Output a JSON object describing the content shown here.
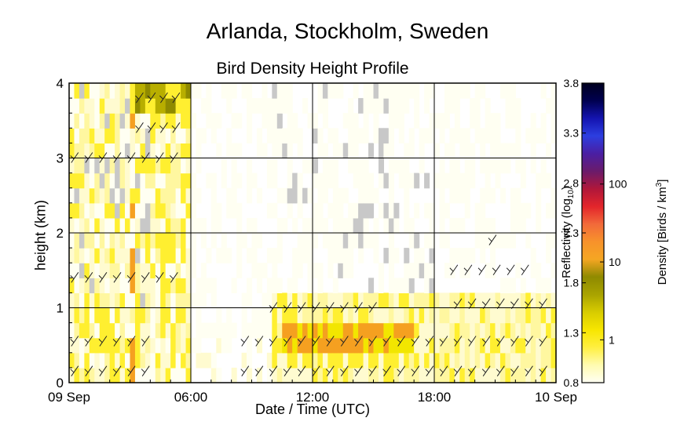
{
  "figure": {
    "title": "Arlanda, Stockholm, Sweden",
    "subtitle": "Bird Density Height Profile"
  },
  "colorbar": {
    "left_label": "Reflectivity (log",
    "left_label_sub": "10",
    "left_label_end": ")",
    "right_label": "Density [Birds / km",
    "right_label_sup": "3",
    "right_label_end": "]",
    "left_ticks": [
      "0.8",
      "1.3",
      "1.8",
      "2.3",
      "2.8",
      "3.3",
      "3.8"
    ],
    "right_ticks": [
      "1",
      "10",
      "100"
    ],
    "colors": [
      "#fffff4",
      "#fffbb0",
      "#ffef40",
      "#f7e600",
      "#d8cc00",
      "#a9a300",
      "#8f8a00",
      "#f5a623",
      "#f7922b",
      "#f26a3a",
      "#e3252b",
      "#b0173a",
      "#6a1b6b",
      "#4a1fa3",
      "#2c3ee0",
      "#1414b0",
      "#000050",
      "#00001f"
    ]
  },
  "chart_data": {
    "type": "heatmap",
    "title": "Bird Density Height Profile",
    "xlabel": "Date / Time (UTC)",
    "ylabel": "height (km)",
    "x_ticks": [
      "09 Sep",
      "06:00",
      "12:00",
      "18:00",
      "10 Sep"
    ],
    "x_range_hours": [
      0,
      24
    ],
    "y_ticks": [
      "0",
      "1",
      "2",
      "3",
      "4"
    ],
    "ylim": [
      0,
      4
    ],
    "grid": true,
    "cell_hours": 0.25,
    "cell_km": 0.2,
    "reflectivity_range_log10": [
      0.8,
      3.8
    ],
    "density_ticks": [
      1,
      10,
      100
    ],
    "gray_means": "no data",
    "bands": [
      {
        "hours": [
          0,
          6
        ],
        "heights_km": [
          0,
          4
        ],
        "level": "light-yellow",
        "note": "patchy layer with gaps up to 4 km"
      },
      {
        "hours": [
          3,
          6.5
        ],
        "heights_km": [
          3.6,
          4
        ],
        "level": "olive",
        "note": "dense top layer"
      },
      {
        "hours": [
          3.0,
          3.2
        ],
        "heights_km": [
          0,
          4
        ],
        "level": "orange",
        "note": "narrow column"
      },
      {
        "hours": [
          10,
          18
        ],
        "heights_km": [
          0.4,
          0.8
        ],
        "level": "orange",
        "note": "evening layer"
      },
      {
        "hours": [
          10,
          18
        ],
        "heights_km": [
          0,
          1.2
        ],
        "level": "yellow"
      },
      {
        "hours": [
          18,
          24
        ],
        "heights_km": [
          0,
          1.2
        ],
        "level": "light-yellow"
      }
    ]
  }
}
